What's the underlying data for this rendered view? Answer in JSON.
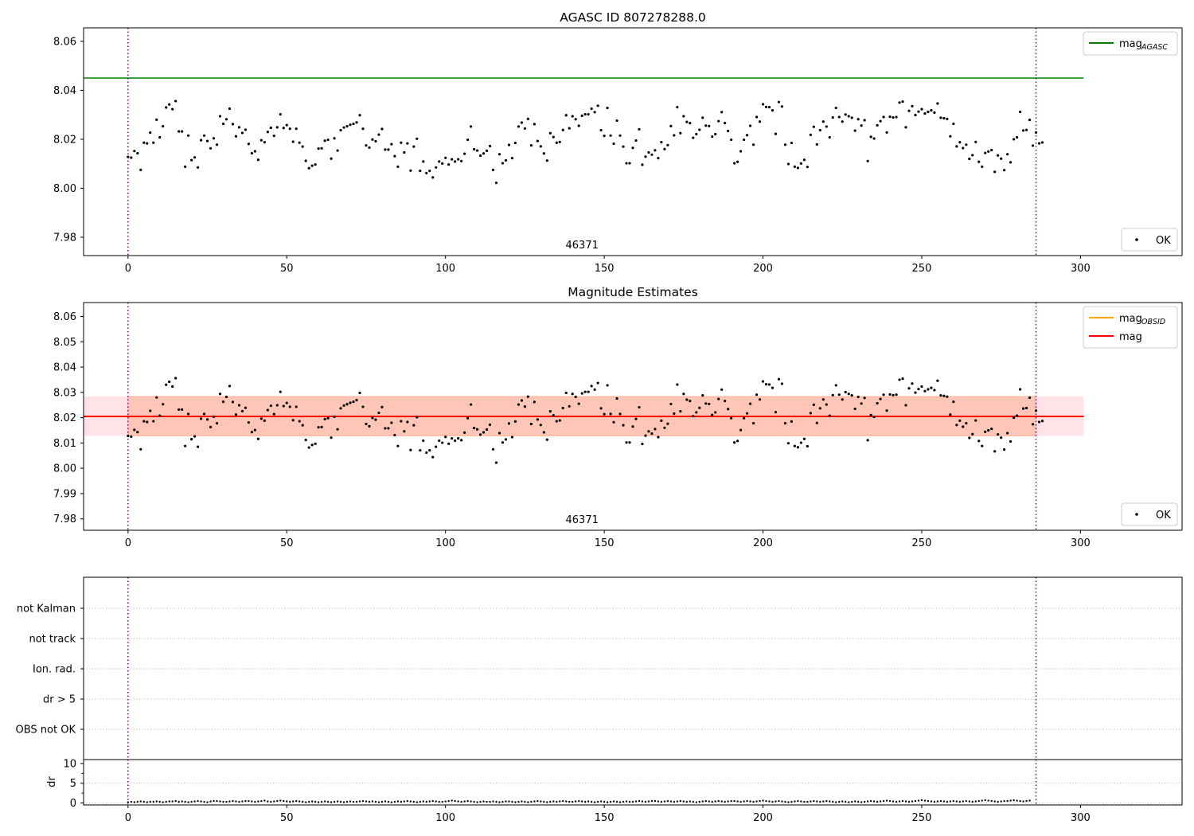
{
  "colors": {
    "agasc_line": "#008000",
    "obsid_line": "#FFA500",
    "mean_line": "#FF0000",
    "band_inner": "#FFA07A",
    "band_outer": "#FFC0CB",
    "vline": "#800080",
    "points": "#000000",
    "grid": "#b0b0b0"
  },
  "chart_data": [
    {
      "type": "scatter",
      "title": "AGASC ID 807278288.0",
      "xlim": [
        -14,
        332
      ],
      "ylim": [
        7.9725,
        8.0655
      ],
      "xticks": [
        0,
        50,
        100,
        150,
        200,
        250,
        300
      ],
      "yticks": [
        7.98,
        8.0,
        8.02,
        8.04,
        8.06
      ],
      "ytick_labels": [
        "7.98",
        "8.00",
        "8.02",
        "8.04",
        "8.06"
      ],
      "vlines": [
        0,
        286
      ],
      "annotation": {
        "text": "46371",
        "x": 143
      },
      "hlines": [
        {
          "name": "mag_AGASC",
          "y": 8.045,
          "x_range": [
            -14,
            301
          ]
        }
      ],
      "series": [
        {
          "name": "OK",
          "source": "magnitudes"
        }
      ],
      "legends": {
        "upper_right": [
          {
            "label": "mag",
            "sub": "AGASC",
            "kind": "line",
            "color_key": "agasc_line"
          }
        ],
        "lower_right": [
          {
            "label": "OK",
            "kind": "marker"
          }
        ]
      }
    },
    {
      "type": "scatter",
      "title": "Magnitude Estimates",
      "xlim": [
        -14,
        332
      ],
      "ylim": [
        7.9755,
        8.0655
      ],
      "xticks": [
        0,
        50,
        100,
        150,
        200,
        250,
        300
      ],
      "yticks": [
        7.98,
        7.99,
        8.0,
        8.01,
        8.02,
        8.03,
        8.04,
        8.05,
        8.06
      ],
      "ytick_labels": [
        "7.98",
        "7.99",
        "8.00",
        "8.01",
        "8.02",
        "8.03",
        "8.04",
        "8.05",
        "8.06"
      ],
      "vlines": [
        0,
        286
      ],
      "annotation": {
        "text": "46371",
        "x": 143
      },
      "mean": 8.0205,
      "band_outer": [
        8.0128,
        8.0284
      ],
      "band_inner": [
        8.0128,
        8.0284
      ],
      "band_inner_x": [
        0,
        286
      ],
      "band_outer_x": [
        -14,
        301
      ],
      "series": [
        {
          "name": "OK",
          "source": "magnitudes"
        }
      ],
      "legends": {
        "upper_right": [
          {
            "label": "mag",
            "sub": "OBSID",
            "kind": "line",
            "color_key": "obsid_line"
          },
          {
            "label": "mag",
            "sub": "",
            "kind": "line",
            "color_key": "mean_line"
          }
        ],
        "lower_right": [
          {
            "label": "OK",
            "kind": "marker"
          }
        ]
      }
    },
    {
      "type": "scatter",
      "title": "",
      "categories": [
        "not Kalman",
        "not track",
        "Ion. rad.",
        "dr > 5",
        "OBS not OK"
      ],
      "xlim": [
        -14,
        332
      ],
      "vlines": [
        0,
        286
      ],
      "series": []
    },
    {
      "type": "scatter",
      "title": "",
      "ylabel": "dr",
      "xlim": [
        -14,
        332
      ],
      "ylim": [
        -0.5,
        11
      ],
      "xticks": [
        0,
        50,
        100,
        150,
        200,
        250,
        300
      ],
      "yticks": [
        0,
        5,
        10
      ],
      "ytick_labels": [
        "0",
        "5",
        "10"
      ],
      "vlines": [
        0,
        286
      ],
      "series": [
        {
          "name": "dr",
          "source": "dr"
        }
      ]
    }
  ],
  "magnitudes": [
    8.0128,
    8.0125,
    8.0152,
    8.0143,
    8.0075,
    8.0186,
    8.0183,
    8.0227,
    8.0186,
    8.028,
    8.0208,
    8.0253,
    8.033,
    8.0342,
    8.0323,
    8.0356,
    8.0232,
    8.0232,
    8.0088,
    8.0215,
    8.0115,
    8.0126,
    8.0085,
    8.0196,
    8.0215,
    8.0193,
    8.0163,
    8.0204,
    8.0178,
    8.0294,
    8.0263,
    8.0282,
    8.0325,
    8.0262,
    8.0212,
    8.0249,
    8.0226,
    8.0239,
    8.0181,
    8.0143,
    8.0151,
    8.0116,
    8.0196,
    8.0188,
    8.023,
    8.0247,
    8.0214,
    8.0249,
    8.0302,
    8.0246,
    8.0258,
    8.0243,
    8.019,
    8.0243,
    8.0186,
    8.017,
    8.0112,
    8.0082,
    8.0092,
    8.0097,
    8.0162,
    8.0163,
    8.0194,
    8.0198,
    8.0121,
    8.0204,
    8.0154,
    8.0237,
    8.0248,
    8.0253,
    8.0259,
    8.0263,
    8.0269,
    8.0298,
    8.0243,
    8.0175,
    8.0166,
    8.0199,
    8.0192,
    8.0219,
    8.0242,
    8.0158,
    8.0158,
    8.018,
    8.0131,
    8.0088,
    8.0186,
    8.0146,
    8.0183,
    8.0072,
    8.017,
    8.0202,
    8.0071,
    8.0109,
    8.0062,
    8.0071,
    8.0044,
    8.0085,
    8.0109,
    8.0101,
    8.0124,
    8.0097,
    8.0118,
    8.0109,
    8.0118,
    8.0111,
    8.0141,
    8.0198,
    8.0252,
    8.0159,
    8.0154,
    8.0133,
    8.0142,
    8.0153,
    8.0172,
    8.0075,
    8.0022,
    8.0139,
    8.0102,
    8.0114,
    8.0177,
    8.0123,
    8.0185,
    8.0252,
    8.0268,
    8.0244,
    8.0283,
    8.0175,
    8.0262,
    8.0193,
    8.0171,
    8.0142,
    8.0113,
    8.0225,
    8.0209,
    8.0186,
    8.0189,
    8.0238,
    8.0298,
    8.0245,
    8.0294,
    8.0282,
    8.0255,
    8.0296,
    8.0302,
    8.0302,
    8.0325,
    8.0311,
    8.0337,
    8.0237,
    8.0214,
    8.0328,
    8.0215,
    8.0182,
    8.0276,
    8.0215,
    8.017,
    8.0102,
    8.0102,
    8.0165,
    8.0195,
    8.0241,
    8.0096,
    8.0129,
    8.0146,
    8.0137,
    8.0155,
    8.0123,
    8.0188,
    8.016,
    8.0176,
    8.0254,
    8.0216,
    8.0331,
    8.0225,
    8.0294,
    8.0271,
    8.0266,
    8.0206,
    8.0221,
    8.0239,
    8.0288,
    8.0256,
    8.0254,
    8.0211,
    8.0221,
    8.0274,
    8.0311,
    8.0266,
    8.0234,
    8.0198,
    8.0102,
    8.0108,
    8.0151,
    8.0198,
    8.0217,
    8.0255,
    8.0178,
    8.0291,
    8.0272,
    8.0343,
    8.0332,
    8.0331,
    8.0318,
    8.0222,
    8.0352,
    8.0334,
    8.0178,
    8.0099,
    8.0185,
    8.0088,
    8.0083,
    8.0101,
    8.0116,
    8.0087,
    8.0218,
    8.0251,
    8.0179,
    8.0237,
    8.0272,
    8.0252,
    8.0208,
    8.0289,
    8.0328,
    8.0291,
    8.0272,
    8.0301,
    8.0294,
    8.0288,
    8.0235,
    8.0282,
    8.0256,
    8.0278,
    8.0111,
    8.021,
    8.0203,
    8.0257,
    8.0274,
    8.0291,
    8.0228,
    8.0292,
    8.0289,
    8.0291,
    8.035,
    8.0354,
    8.0249,
    8.0316,
    8.0335,
    8.0299,
    8.0313,
    8.0323,
    8.0305,
    8.0312,
    8.0318,
    8.0309,
    8.0346,
    8.0288,
    8.0286,
    8.0283,
    8.0212,
    8.0263,
    8.0171,
    8.0188,
    8.0164,
    8.0178,
    8.012,
    8.0135,
    8.0189,
    8.0108,
    8.0088,
    8.0144,
    8.015,
    8.0156,
    8.0067,
    8.0134,
    8.0121,
    8.0074,
    8.0139,
    8.0106,
    8.02,
    8.0208,
    8.0312,
    8.0236,
    8.0238,
    8.0279,
    8.0174,
    8.0228,
    8.0183,
    8.0187
  ],
  "dr": [
    0.2,
    0.3,
    0.2,
    0.3,
    0.4,
    0.3,
    0.2,
    0.3,
    0.3,
    0.4,
    0.3,
    0.2,
    0.3,
    0.4,
    0.4,
    0.5,
    0.3,
    0.4,
    0.3,
    0.2,
    0.3,
    0.4,
    0.5,
    0.4,
    0.3,
    0.2,
    0.4,
    0.5,
    0.5,
    0.4,
    0.3,
    0.3,
    0.4,
    0.5,
    0.4,
    0.3,
    0.4,
    0.5,
    0.5,
    0.4,
    0.3,
    0.4,
    0.5,
    0.6,
    0.4,
    0.3,
    0.4,
    0.5,
    0.6,
    0.5,
    0.4,
    0.3,
    0.4,
    0.5,
    0.4,
    0.3,
    0.2,
    0.3,
    0.4,
    0.3,
    0.2,
    0.3,
    0.4,
    0.3,
    0.2,
    0.3,
    0.4,
    0.3,
    0.2,
    0.3,
    0.4,
    0.3,
    0.3,
    0.4,
    0.5,
    0.4,
    0.3,
    0.4,
    0.3,
    0.2,
    0.3,
    0.4,
    0.3,
    0.2,
    0.3,
    0.4,
    0.3,
    0.4,
    0.5,
    0.4,
    0.3,
    0.2,
    0.3,
    0.4,
    0.3,
    0.4,
    0.5,
    0.4,
    0.3,
    0.3,
    0.4,
    0.5,
    0.6,
    0.5,
    0.4,
    0.3,
    0.4,
    0.5,
    0.4,
    0.3,
    0.2,
    0.3,
    0.4,
    0.3,
    0.3,
    0.4,
    0.3,
    0.2,
    0.3,
    0.4,
    0.4,
    0.3,
    0.2,
    0.3,
    0.4,
    0.3,
    0.2,
    0.3,
    0.4,
    0.5,
    0.4,
    0.3,
    0.2,
    0.3,
    0.4,
    0.3,
    0.4,
    0.5,
    0.4,
    0.3,
    0.3,
    0.4,
    0.5,
    0.4,
    0.3,
    0.4,
    0.3,
    0.2,
    0.3,
    0.4,
    0.3,
    0.2,
    0.3,
    0.4,
    0.3,
    0.2,
    0.3,
    0.4,
    0.3,
    0.3,
    0.4,
    0.5,
    0.4,
    0.3,
    0.4,
    0.5,
    0.5,
    0.4,
    0.3,
    0.4,
    0.5,
    0.4,
    0.3,
    0.4,
    0.5,
    0.4,
    0.3,
    0.4,
    0.3,
    0.2,
    0.3,
    0.4,
    0.5,
    0.4,
    0.3,
    0.4,
    0.5,
    0.4,
    0.3,
    0.4,
    0.5,
    0.5,
    0.4,
    0.3,
    0.4,
    0.5,
    0.4,
    0.3,
    0.4,
    0.5,
    0.6,
    0.5,
    0.4,
    0.3,
    0.4,
    0.5,
    0.4,
    0.3,
    0.2,
    0.3,
    0.4,
    0.5,
    0.4,
    0.3,
    0.3,
    0.4,
    0.5,
    0.4,
    0.3,
    0.4,
    0.5,
    0.4,
    0.3,
    0.2,
    0.3,
    0.4,
    0.3,
    0.2,
    0.3,
    0.4,
    0.3,
    0.2,
    0.3,
    0.4,
    0.5,
    0.4,
    0.3,
    0.4,
    0.5,
    0.6,
    0.5,
    0.4,
    0.3,
    0.4,
    0.5,
    0.4,
    0.3,
    0.4,
    0.5,
    0.6,
    0.7,
    0.6,
    0.5,
    0.4,
    0.3,
    0.4,
    0.5,
    0.4,
    0.3,
    0.4,
    0.5,
    0.4,
    0.3,
    0.4,
    0.5,
    0.4,
    0.3,
    0.4,
    0.5,
    0.6,
    0.7,
    0.6,
    0.5,
    0.4,
    0.3,
    0.4,
    0.5,
    0.5,
    0.6,
    0.7,
    0.6,
    0.5,
    0.4,
    0.5,
    0.6
  ]
}
